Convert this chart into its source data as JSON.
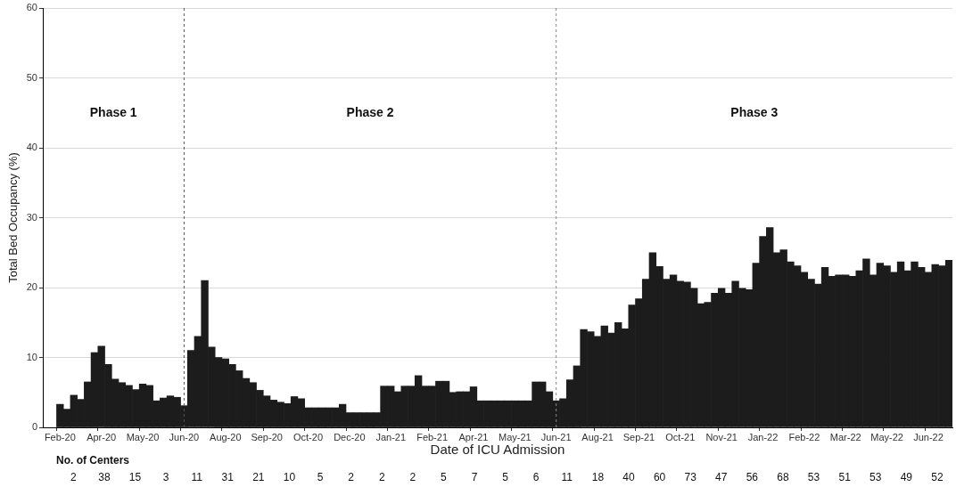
{
  "chart_data": [
    {
      "type": "bar",
      "xlabel": "Date of ICU Admission",
      "ylabel": "Total Bed Occupancy (%)",
      "categories": [
        null,
        null,
        "Feb-20",
        null,
        null,
        null,
        null,
        null,
        "Apr-20",
        null,
        null,
        null,
        null,
        null,
        "May-20",
        null,
        null,
        null,
        null,
        null,
        "Jun-20",
        null,
        null,
        null,
        null,
        null,
        "Aug-20",
        null,
        null,
        null,
        null,
        null,
        "Sep-20",
        null,
        null,
        null,
        null,
        null,
        "Oct-20",
        null,
        null,
        null,
        null,
        null,
        "Dec-20",
        null,
        null,
        null,
        null,
        null,
        "Jan-21",
        null,
        null,
        null,
        null,
        null,
        "Feb-21",
        null,
        null,
        null,
        null,
        null,
        "Apr-21",
        null,
        null,
        null,
        null,
        null,
        "May-21",
        null,
        null,
        null,
        null,
        null,
        "Jun-21",
        null,
        null,
        null,
        null,
        null,
        "Aug-21",
        null,
        null,
        null,
        null,
        null,
        "Sep-21",
        null,
        null,
        null,
        null,
        null,
        "Oct-21",
        null,
        null,
        null,
        null,
        null,
        "Nov-21",
        null,
        null,
        null,
        null,
        null,
        "Jan-22",
        null,
        null,
        null,
        null,
        null,
        "Feb-22",
        null,
        null,
        null,
        null,
        null,
        "Mar-22",
        null,
        null,
        null,
        null,
        null,
        "May-22",
        null,
        null,
        null,
        null,
        null,
        "Jun-22",
        null,
        null,
        null
      ],
      "values": [
        null,
        null,
        3.3,
        2.6,
        4.6,
        4.0,
        6.5,
        10.7,
        11.6,
        9.0,
        6.9,
        6.4,
        6.0,
        5.4,
        6.2,
        6.0,
        3.8,
        4.2,
        4.5,
        4.3,
        3.1,
        11.0,
        13.0,
        21.0,
        11.5,
        10.0,
        9.8,
        9.0,
        8.1,
        7.0,
        6.4,
        5.3,
        4.5,
        3.9,
        3.6,
        3.4,
        4.4,
        4.1,
        2.8,
        2.8,
        2.8,
        2.8,
        2.8,
        3.3,
        2.1,
        2.1,
        2.1,
        2.1,
        2.1,
        5.9,
        5.9,
        5.1,
        5.9,
        5.9,
        7.4,
        5.9,
        5.9,
        6.6,
        6.6,
        5.0,
        5.1,
        5.1,
        5.8,
        3.8,
        3.8,
        3.8,
        3.8,
        3.8,
        3.8,
        3.8,
        3.8,
        6.5,
        6.5,
        5.1,
        3.8,
        4.1,
        6.8,
        8.8,
        14.0,
        13.7,
        13.0,
        14.5,
        13.5,
        15.0,
        14.1,
        17.5,
        18.4,
        21.2,
        25.0,
        23.0,
        21.2,
        21.8,
        20.9,
        20.8,
        19.9,
        17.7,
        17.9,
        19.2,
        19.9,
        19.2,
        20.9,
        19.9,
        19.7,
        23.5,
        27.3,
        28.6,
        25.0,
        25.4,
        23.7,
        23.1,
        22.2,
        21.2,
        20.5,
        22.9,
        21.6,
        21.8,
        21.8,
        21.6,
        22.4,
        24.1,
        21.8,
        23.5,
        23.1,
        22.2,
        23.7,
        22.4,
        23.7,
        22.9,
        22.2,
        23.3,
        23.1,
        23.9
      ],
      "color": "#1c1c1c",
      "ylim": [
        0,
        60
      ],
      "yticks": [
        0,
        10,
        20,
        30,
        40,
        50,
        60
      ],
      "grid": "y",
      "ref_lines": [
        {
          "axis": "x",
          "value": "Jun-20",
          "color": "#555555",
          "line_style": "dashed"
        },
        {
          "axis": "x",
          "value": "Jun-21",
          "color": "#888888",
          "line_style": "dashed"
        }
      ],
      "annotations": [
        "Phase 1",
        "Phase 2",
        "Phase 3"
      ]
    },
    {
      "type": "other",
      "title": "No. of Centers",
      "annotations": [
        "2 38 15 3 11 31 21 10 5 2 2 2 5 7 5 6 11 18 40 60 73 47 56 68 53 51 53 49 52"
      ]
    }
  ]
}
